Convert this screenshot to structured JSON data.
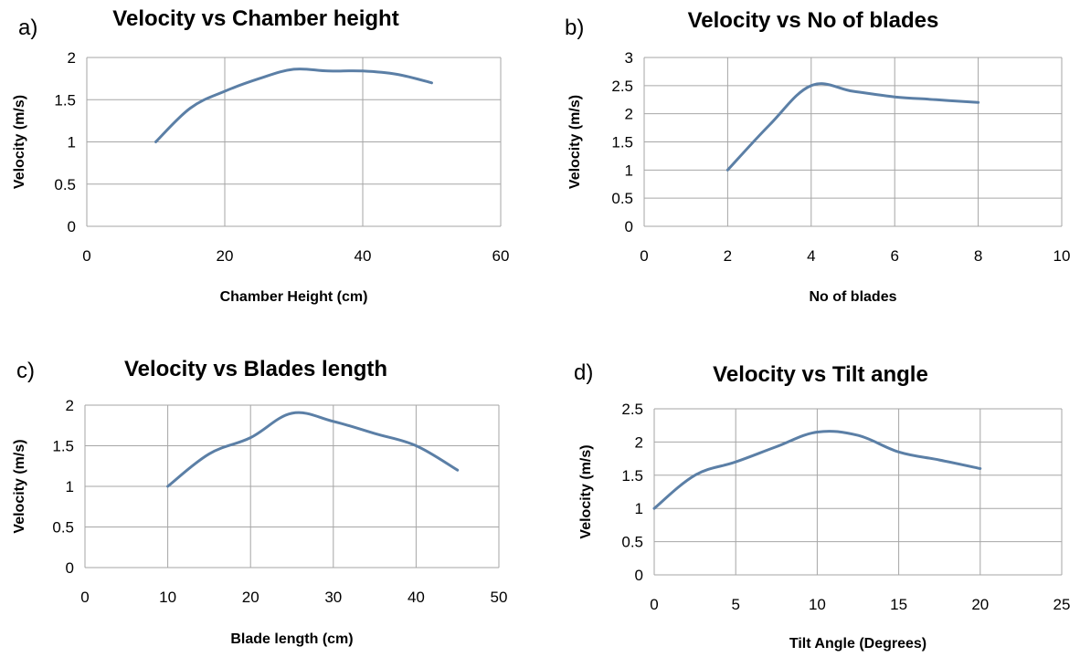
{
  "chart_data": [
    {
      "panel": "a)",
      "type": "line",
      "title": "Velocity vs Chamber height",
      "xlabel": "Chamber Height (cm)",
      "ylabel": "Velocity (m/s)",
      "xlim": [
        0,
        60
      ],
      "ylim": [
        0,
        2
      ],
      "xticks": [
        "0",
        "20",
        "40",
        "60"
      ],
      "yticks": [
        "0",
        "0.5",
        "1",
        "1.5",
        "2"
      ],
      "grid": "vertical and horizontal",
      "series": [
        {
          "x": [
            10,
            15,
            20,
            25,
            30,
            35,
            40,
            45,
            50
          ],
          "y": [
            1.0,
            1.4,
            1.6,
            1.75,
            1.86,
            1.84,
            1.84,
            1.8,
            1.7
          ],
          "color": "#5b7fa6"
        }
      ]
    },
    {
      "panel": "b)",
      "type": "line",
      "title": "Velocity vs No of blades",
      "xlabel": "No of blades",
      "ylabel": "Velocity (m/s)",
      "xlim": [
        0,
        10
      ],
      "ylim": [
        0,
        3
      ],
      "xticks": [
        "0",
        "2",
        "4",
        "6",
        "8",
        "10"
      ],
      "yticks": [
        "0",
        "0.5",
        "1",
        "1.5",
        "2",
        "2.5",
        "3"
      ],
      "grid": "vertical and horizontal",
      "series": [
        {
          "x": [
            2,
            3,
            4,
            5,
            6,
            7,
            8
          ],
          "y": [
            1.0,
            1.8,
            2.5,
            2.4,
            2.3,
            2.25,
            2.2
          ],
          "color": "#5b7fa6"
        }
      ]
    },
    {
      "panel": "c)",
      "type": "line",
      "title": "Velocity vs Blades length",
      "xlabel": "Blade length (cm)",
      "ylabel": "Velocity (m/s)",
      "xlim": [
        0,
        50
      ],
      "ylim": [
        0,
        2
      ],
      "xticks": [
        "0",
        "10",
        "20",
        "30",
        "40",
        "50"
      ],
      "yticks": [
        "0",
        "0.5",
        "1",
        "1.5",
        "2"
      ],
      "grid": "vertical and horizontal",
      "series": [
        {
          "x": [
            10,
            15,
            20,
            25,
            30,
            35,
            40,
            45
          ],
          "y": [
            1.0,
            1.4,
            1.6,
            1.9,
            1.8,
            1.65,
            1.5,
            1.2
          ],
          "color": "#5b7fa6"
        }
      ]
    },
    {
      "panel": "d)",
      "type": "line",
      "title": "Velocity vs Tilt angle",
      "xlabel": "Tilt Angle (Degrees)",
      "ylabel": "Velocity (m/s)",
      "xlim": [
        0,
        25
      ],
      "ylim": [
        0,
        2.5
      ],
      "xticks": [
        "0",
        "5",
        "10",
        "15",
        "20",
        "25"
      ],
      "yticks": [
        "0",
        "0.5",
        "1",
        "1.5",
        "2",
        "2.5"
      ],
      "grid": "vertical and horizontal",
      "series": [
        {
          "x": [
            0,
            2.5,
            5,
            7.5,
            10,
            12.5,
            15,
            17.5,
            20
          ],
          "y": [
            1.0,
            1.5,
            1.7,
            1.93,
            2.15,
            2.1,
            1.85,
            1.73,
            1.6
          ],
          "color": "#5b7fa6"
        }
      ]
    }
  ]
}
